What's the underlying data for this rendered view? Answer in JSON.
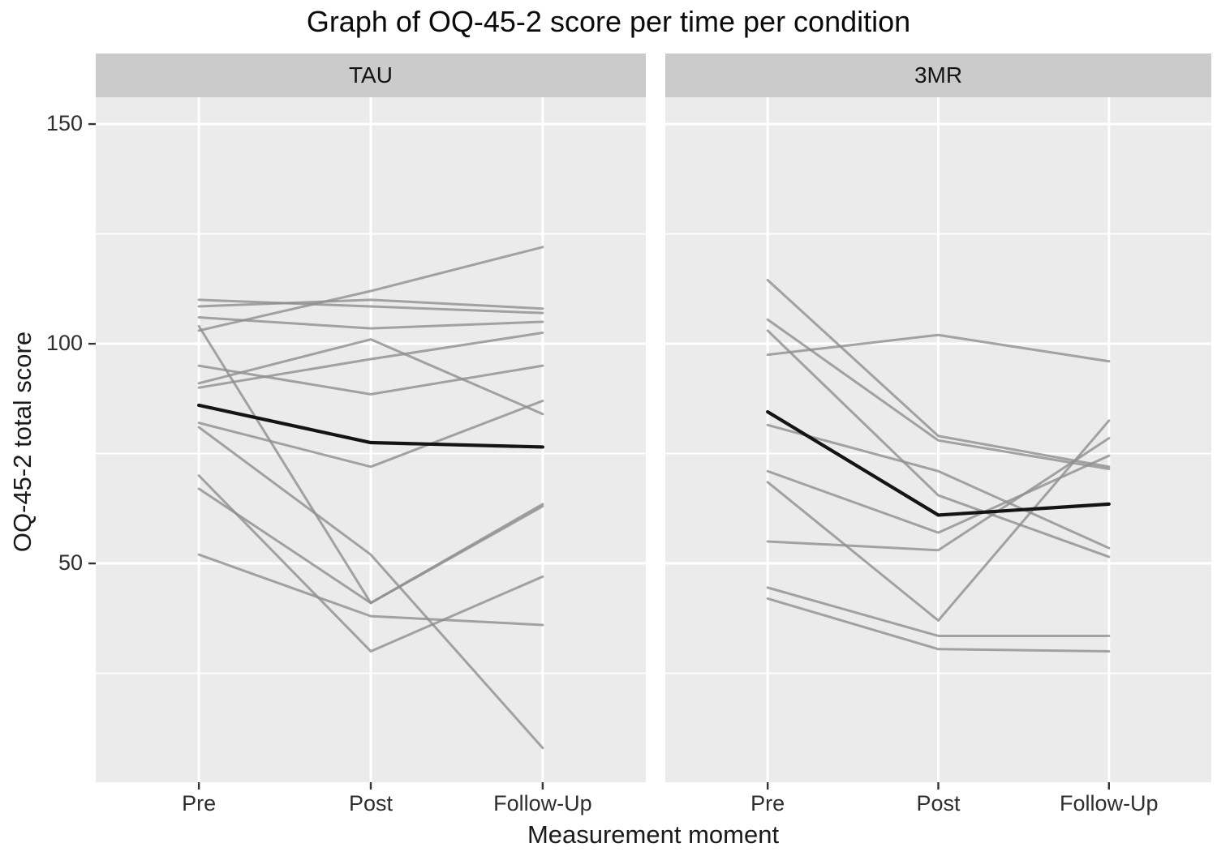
{
  "chart_data": {
    "type": "line",
    "title": "Graph of OQ-45-2 score per time per condition",
    "xlabel": "Measurement moment",
    "ylabel": "OQ-45-2 total score",
    "categories": [
      "Pre",
      "Post",
      "Follow-Up"
    ],
    "ylim": [
      0,
      156
    ],
    "yticks_major": [
      150,
      100,
      50
    ],
    "yticks_minor": [
      125,
      75,
      25
    ],
    "grid": true,
    "legend": false,
    "facets": [
      {
        "label": "TAU",
        "individual_lines": [
          [
            110,
            108.5,
            107
          ],
          [
            108.5,
            110,
            108
          ],
          [
            106,
            103.5,
            105
          ],
          [
            103,
            112,
            122
          ],
          [
            104,
            41,
            63
          ],
          [
            95,
            88.5,
            95
          ],
          [
            91,
            101,
            84
          ],
          [
            90,
            96.5,
            102.5
          ],
          [
            82,
            72,
            87
          ],
          [
            81,
            52,
            8
          ],
          [
            70,
            30,
            47
          ],
          [
            67,
            41,
            63.5
          ],
          [
            52,
            38,
            36
          ]
        ],
        "mean_line": [
          86,
          77.5,
          76.5
        ]
      },
      {
        "label": "3MR",
        "individual_lines": [
          [
            97.5,
            102,
            96
          ],
          [
            114.5,
            79,
            72
          ],
          [
            105.5,
            78,
            71.5
          ],
          [
            103,
            65.5,
            51.5
          ],
          [
            81.5,
            71,
            53.5
          ],
          [
            71,
            57,
            74.5
          ],
          [
            68.5,
            37,
            82.5
          ],
          [
            55,
            53,
            78.5
          ],
          [
            44.5,
            33.5,
            33.5
          ],
          [
            42,
            30.5,
            30
          ]
        ],
        "mean_line": [
          84.5,
          61,
          63.5
        ]
      }
    ],
    "colors": {
      "panel_background": "#ebebeb",
      "strip_background": "#cbcbcb",
      "gridline": "#ffffff",
      "individual_line": "#8f8f8f",
      "mean_line": "#141414",
      "tick_mark": "#333333",
      "tick_text": "#2e2e2e"
    }
  }
}
